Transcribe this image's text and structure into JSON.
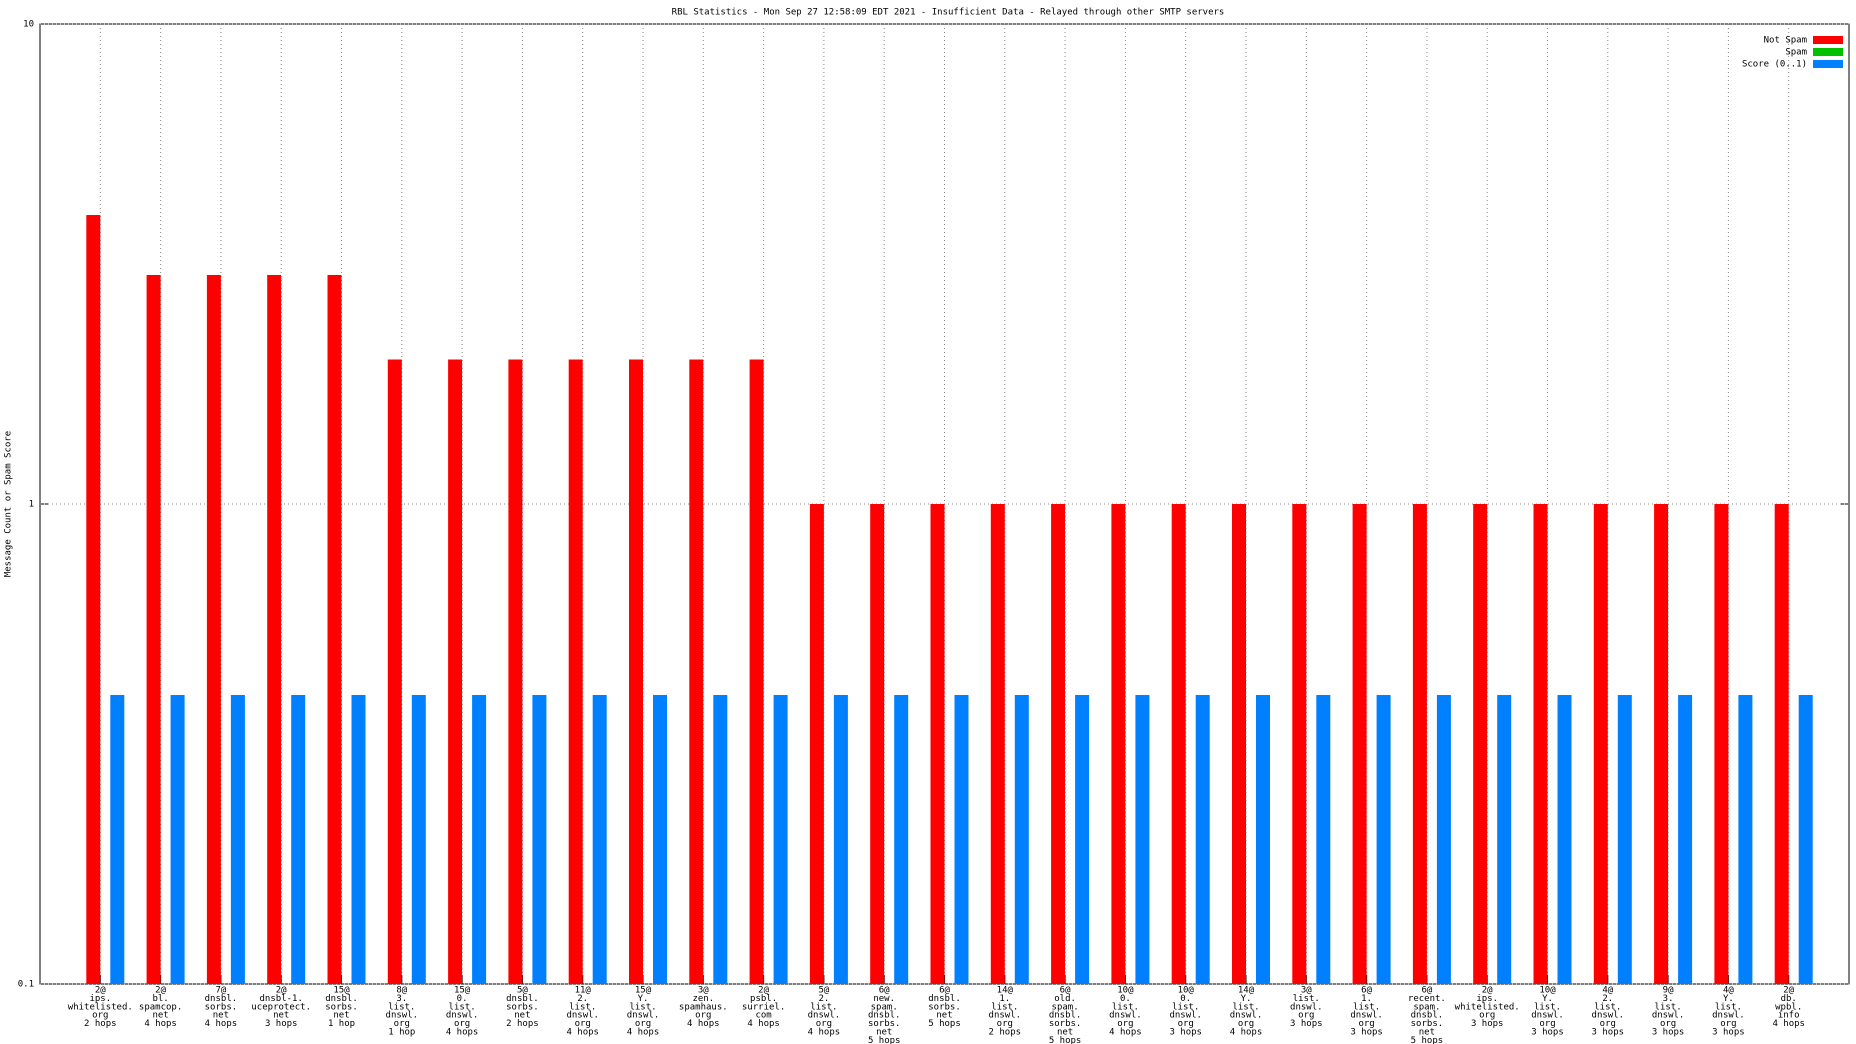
{
  "chart_data": {
    "type": "bar",
    "title": "RBL Statistics - Mon Sep 27 12:58:09 EDT 2021 - Insufficient Data - Relayed through other SMTP servers",
    "y_label": "Message Count or Spam Score",
    "log_y": true,
    "grid": true,
    "legend_position": "top-right",
    "ylim": [
      0.1,
      10
    ],
    "yticks": [
      0.1,
      1,
      10
    ],
    "categories": [
      [
        "2@",
        "ips.",
        "whitelisted.",
        "org",
        "2 hops"
      ],
      [
        "2@",
        "bl.",
        "spamcop.",
        "net",
        "4 hops"
      ],
      [
        "7@",
        "dnsbl.",
        "sorbs.",
        "net",
        "4 hops"
      ],
      [
        "2@",
        "dnsbl-1.",
        "uceprotect.",
        "net",
        "3 hops"
      ],
      [
        "15@",
        "dnsbl.",
        "sorbs.",
        "net",
        "1 hop"
      ],
      [
        "8@",
        "3.",
        "list.",
        "dnswl.",
        "org",
        "1 hop"
      ],
      [
        "15@",
        "0.",
        "list.",
        "dnswl.",
        "org",
        "4 hops"
      ],
      [
        "5@",
        "dnsbl.",
        "sorbs.",
        "net",
        "2 hops"
      ],
      [
        "11@",
        "2.",
        "list.",
        "dnswl.",
        "org",
        "4 hops"
      ],
      [
        "15@",
        "Y.",
        "list.",
        "dnswl.",
        "org",
        "4 hops"
      ],
      [
        "3@",
        "zen.",
        "spamhaus.",
        "org",
        "4 hops"
      ],
      [
        "2@",
        "psbl.",
        "surriel.",
        "com",
        "4 hops"
      ],
      [
        "5@",
        "2.",
        "list.",
        "dnswl.",
        "org",
        "4 hops"
      ],
      [
        "6@",
        "new.",
        "spam.",
        "dnsbl.",
        "sorbs.",
        "net",
        "5 hops"
      ],
      [
        "6@",
        "dnsbl.",
        "sorbs.",
        "net",
        "5 hops"
      ],
      [
        "14@",
        "1.",
        "list.",
        "dnswl.",
        "org",
        "2 hops"
      ],
      [
        "6@",
        "old.",
        "spam.",
        "dnsbl.",
        "sorbs.",
        "net",
        "5 hops"
      ],
      [
        "10@",
        "0.",
        "list.",
        "dnswl.",
        "org",
        "4 hops"
      ],
      [
        "10@",
        "0.",
        "list.",
        "dnswl.",
        "org",
        "3 hops"
      ],
      [
        "14@",
        "Y.",
        "list.",
        "dnswl.",
        "org",
        "4 hops"
      ],
      [
        "3@",
        "list.",
        "dnswl.",
        "org",
        "3 hops"
      ],
      [
        "6@",
        "1.",
        "list.",
        "dnswl.",
        "org",
        "3 hops"
      ],
      [
        "6@",
        "recent.",
        "spam.",
        "dnsbl.",
        "sorbs.",
        "net",
        "5 hops"
      ],
      [
        "2@",
        "ips.",
        "whitelisted.",
        "org",
        "3 hops"
      ],
      [
        "10@",
        "Y.",
        "list.",
        "dnswl.",
        "org",
        "3 hops"
      ],
      [
        "4@",
        "2.",
        "list.",
        "dnswl.",
        "org",
        "3 hops"
      ],
      [
        "9@",
        "3.",
        "list.",
        "dnswl.",
        "org",
        "3 hops"
      ],
      [
        "4@",
        "Y.",
        "list.",
        "dnswl.",
        "org",
        "3 hops"
      ],
      [
        "2@",
        "db.",
        "wpbl.",
        "info",
        "4 hops"
      ]
    ],
    "series": [
      {
        "name": "Not Spam",
        "color": "#ff0000",
        "values": [
          4,
          3,
          3,
          3,
          3,
          2,
          2,
          2,
          2,
          2,
          2,
          2,
          1,
          1,
          1,
          1,
          1,
          1,
          1,
          1,
          1,
          1,
          1,
          1,
          1,
          1,
          1,
          1,
          1
        ]
      },
      {
        "name": "Spam",
        "color": "#00c000",
        "values": [
          null,
          null,
          null,
          null,
          null,
          null,
          null,
          null,
          null,
          null,
          null,
          null,
          null,
          null,
          null,
          null,
          null,
          null,
          null,
          null,
          null,
          null,
          null,
          null,
          null,
          null,
          null,
          null,
          null
        ]
      },
      {
        "name": "Score (0..1)",
        "color": "#0080ff",
        "values": [
          0.4,
          0.4,
          0.4,
          0.4,
          0.4,
          0.4,
          0.4,
          0.4,
          0.4,
          0.4,
          0.4,
          0.4,
          0.4,
          0.4,
          0.4,
          0.4,
          0.4,
          0.4,
          0.4,
          0.4,
          0.4,
          0.4,
          0.4,
          0.4,
          0.4,
          0.4,
          0.4,
          0.4,
          0.4
        ]
      }
    ]
  }
}
